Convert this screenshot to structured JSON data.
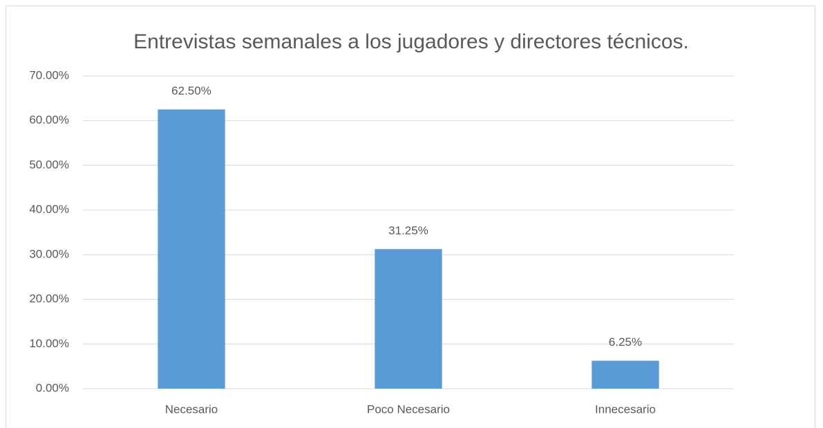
{
  "chart_data": {
    "type": "bar",
    "title": "Entrevistas semanales a los jugadores y directores técnicos.",
    "categories": [
      "Necesario",
      "Poco Necesario",
      "Innecesario"
    ],
    "values": [
      62.5,
      31.25,
      6.25
    ],
    "value_labels": [
      "62.50%",
      "31.25%",
      "6.25%"
    ],
    "color": "#5b9bd5",
    "ylim": [
      0,
      70
    ],
    "yticks": [
      {
        "value": 0,
        "label": "0.00%"
      },
      {
        "value": 10,
        "label": "10.00%"
      },
      {
        "value": 20,
        "label": "20.00%"
      },
      {
        "value": 30,
        "label": "30.00%"
      },
      {
        "value": 40,
        "label": "40.00%"
      },
      {
        "value": 50,
        "label": "50.00%"
      },
      {
        "value": 60,
        "label": "60.00%"
      },
      {
        "value": 70,
        "label": "70.00%"
      }
    ],
    "grid": true
  }
}
